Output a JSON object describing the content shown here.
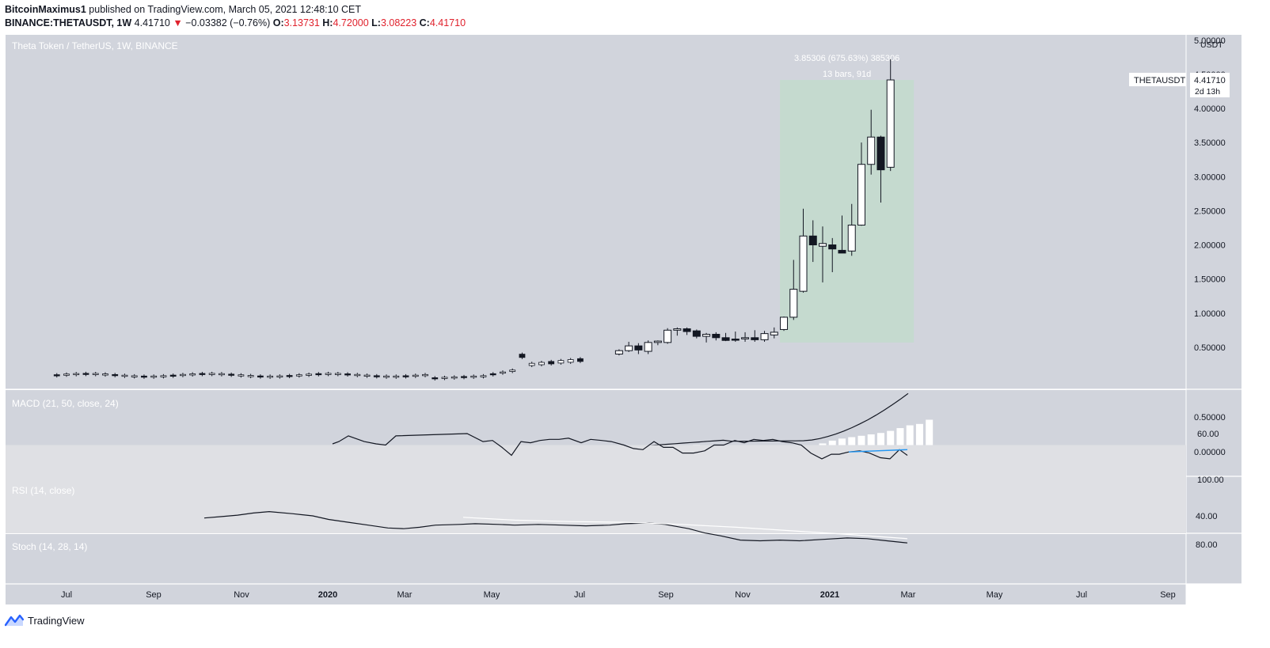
{
  "header": {
    "author": "BitcoinMaximus1",
    "published_text": "published on TradingView.com, March 05, 2021 12:48:10 CET",
    "symbol": "BINANCE:THETAUSDT, 1W",
    "last": "4.41710",
    "change_arrow": "▼",
    "change": "−0.03382 (−0.76%)",
    "o_label": "O:",
    "o_value": "3.13731",
    "h_label": "H:",
    "h_value": "4.72000",
    "l_label": "L:",
    "l_value": "3.08223",
    "c_label": "C:",
    "c_value": "4.41710"
  },
  "footer": {
    "brand": "TradingView",
    "logo_icon": "tradingview-logo-icon"
  },
  "colors": {
    "panel_bg": "#d1d4dc",
    "candle_up": "#ffffff",
    "candle_down": "#131722",
    "measure_box": "#c5dacf",
    "rsi_band": "#dfe0e4",
    "down_red": "#e0222d",
    "trendline": "#2196f3"
  },
  "chart_data": [
    {
      "type": "candlestick",
      "title": "Theta Token / TetherUS, 1W, BINANCE",
      "ylabel": "USDT",
      "ylim": [
        0.0,
        5.0
      ],
      "yticks": [
        "5.00000",
        "4.50000",
        "4.00000",
        "3.50000",
        "3.00000",
        "2.50000",
        "2.00000",
        "1.50000",
        "1.00000",
        "0.50000"
      ],
      "xticks": [
        "Jul",
        "Sep",
        "Nov",
        "2020",
        "Mar",
        "May",
        "Jul",
        "Sep",
        "Nov",
        "2021",
        "Mar",
        "May",
        "Jul",
        "Sep"
      ],
      "price_label": "THETAUSDT",
      "price_value": "4.41710",
      "countdown": "2d 13h",
      "measure": {
        "line1": "3.85306 (675.63%) 385306",
        "line2": "13 bars, 91d",
        "from_date": "2020-11-30",
        "to_date": "2021-03-01",
        "low": 0.57,
        "high": 4.4171
      },
      "candles_summary": "weekly OHLC; values below are [date, open, high, low, close]",
      "candles": [
        [
          "2020-08-03",
          0.4,
          0.47,
          0.38,
          0.45
        ],
        [
          "2020-08-10",
          0.45,
          0.58,
          0.43,
          0.52
        ],
        [
          "2020-08-17",
          0.52,
          0.56,
          0.4,
          0.46
        ],
        [
          "2020-08-24",
          0.44,
          0.6,
          0.4,
          0.57
        ],
        [
          "2020-08-31",
          0.57,
          0.6,
          0.53,
          0.59
        ],
        [
          "2020-09-07",
          0.57,
          0.78,
          0.55,
          0.75
        ],
        [
          "2020-09-14",
          0.75,
          0.79,
          0.67,
          0.77
        ],
        [
          "2020-09-21",
          0.77,
          0.79,
          0.68,
          0.73
        ],
        [
          "2020-09-28",
          0.74,
          0.76,
          0.63,
          0.66
        ],
        [
          "2020-10-05",
          0.66,
          0.71,
          0.57,
          0.69
        ],
        [
          "2020-10-12",
          0.69,
          0.72,
          0.6,
          0.64
        ],
        [
          "2020-10-19",
          0.64,
          0.71,
          0.59,
          0.6
        ],
        [
          "2020-10-26",
          0.62,
          0.73,
          0.58,
          0.61
        ],
        [
          "2020-11-02",
          0.63,
          0.72,
          0.58,
          0.64
        ],
        [
          "2020-11-09",
          0.64,
          0.75,
          0.58,
          0.61
        ],
        [
          "2020-11-16",
          0.61,
          0.74,
          0.58,
          0.7
        ],
        [
          "2020-11-23",
          0.68,
          0.79,
          0.63,
          0.72
        ],
        [
          "2020-11-30",
          0.76,
          0.95,
          0.74,
          0.94
        ],
        [
          "2020-12-07",
          0.94,
          1.78,
          0.9,
          1.35
        ],
        [
          "2020-12-14",
          1.32,
          2.53,
          1.3,
          2.13
        ],
        [
          "2020-12-21",
          2.13,
          2.36,
          1.75,
          2.0
        ],
        [
          "2020-12-28",
          1.98,
          2.27,
          1.45,
          2.02
        ],
        [
          "2021-01-04",
          2.0,
          2.1,
          1.6,
          1.94
        ],
        [
          "2021-01-11",
          1.92,
          2.43,
          1.88,
          1.88
        ],
        [
          "2021-01-18",
          1.91,
          2.6,
          1.84,
          2.29
        ],
        [
          "2021-01-25",
          2.29,
          3.5,
          2.28,
          3.18
        ],
        [
          "2021-02-01",
          3.18,
          3.98,
          3.03,
          3.58
        ],
        [
          "2021-02-08",
          3.58,
          3.6,
          2.62,
          3.1
        ],
        [
          "2021-02-15",
          3.13731,
          4.72,
          3.08223,
          4.4171
        ]
      ]
    },
    {
      "type": "line",
      "title": "MACD (21, 50, close, 24)",
      "ylim": [
        -0.05,
        0.9
      ],
      "yticks": [
        "0.50000",
        "0.00000"
      ]
    },
    {
      "type": "line",
      "title": "RSI (14, close)",
      "ylim": [
        50,
        100
      ],
      "yticks": [
        "100.00",
        "60.00"
      ]
    },
    {
      "type": "line",
      "title": "Stoch (14, 28, 14)",
      "ylim": [
        25,
        92
      ],
      "yticks": [
        "80.00",
        "40.00"
      ]
    }
  ]
}
